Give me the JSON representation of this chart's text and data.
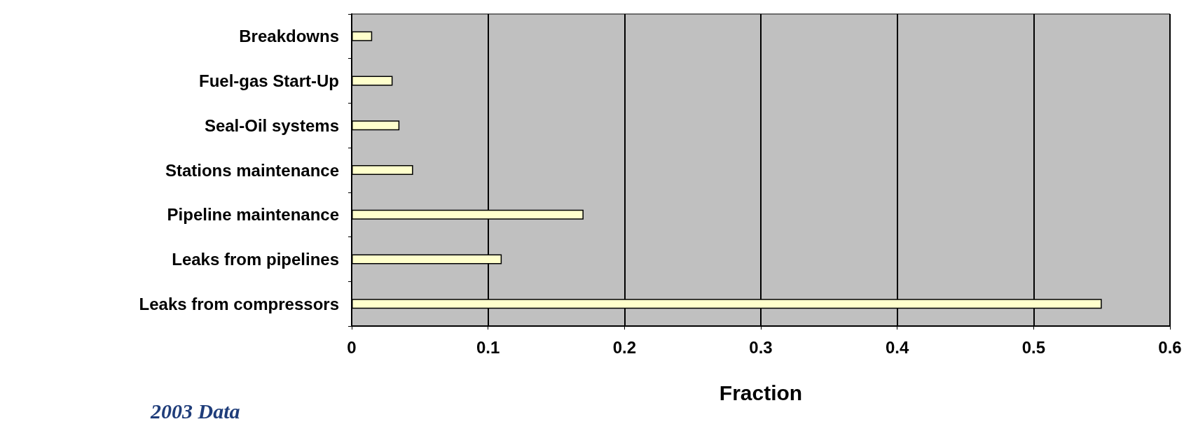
{
  "chart_data": {
    "type": "bar",
    "orientation": "horizontal",
    "xlabel": "Fraction",
    "categories": [
      "Breakdowns",
      "Fuel-gas Start-Up",
      "Seal-Oil systems",
      "Stations maintenance",
      "Pipeline maintenance",
      "Leaks from pipelines",
      "Leaks from compressors"
    ],
    "values": [
      0.015,
      0.03,
      0.035,
      0.045,
      0.17,
      0.11,
      0.55
    ],
    "color": "#ffffcc",
    "xlim": [
      0,
      0.6
    ],
    "xticks": [
      0,
      0.1,
      0.2,
      0.3,
      0.4,
      0.5,
      0.6
    ],
    "grid": "x",
    "annotations": [
      "2003 Data"
    ]
  }
}
